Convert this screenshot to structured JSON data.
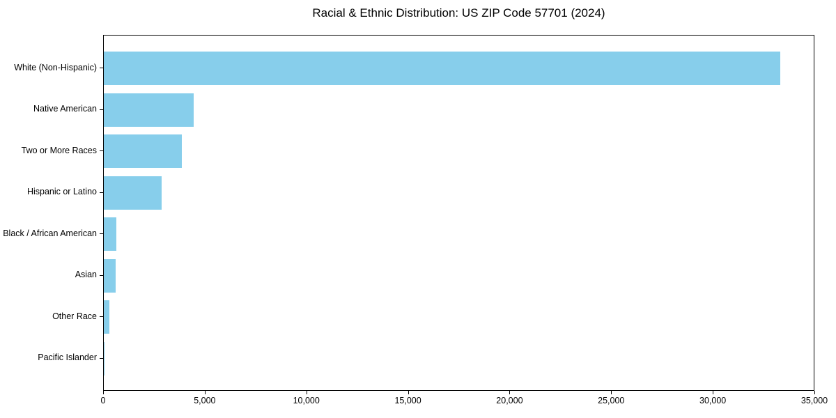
{
  "chart_data": {
    "type": "bar",
    "orientation": "horizontal",
    "title": "Racial & Ethnic Distribution: US ZIP Code 57701 (2024)",
    "categories": [
      "White (Non-Hispanic)",
      "Native American",
      "Two or More Races",
      "Hispanic or Latino",
      "Black / African American",
      "Asian",
      "Other Race",
      "Pacific Islander"
    ],
    "values": [
      33300,
      4420,
      3840,
      2850,
      600,
      580,
      280,
      20
    ],
    "xlabel": "",
    "ylabel": "",
    "xlim": [
      0,
      35000
    ],
    "x_ticks": [
      0,
      5000,
      10000,
      15000,
      20000,
      25000,
      30000,
      35000
    ],
    "x_tick_labels": [
      "0",
      "5,000",
      "10,000",
      "15,000",
      "20,000",
      "25,000",
      "30,000",
      "35,000"
    ],
    "bar_color": "#87CEEB",
    "grid": false,
    "legend": null
  }
}
